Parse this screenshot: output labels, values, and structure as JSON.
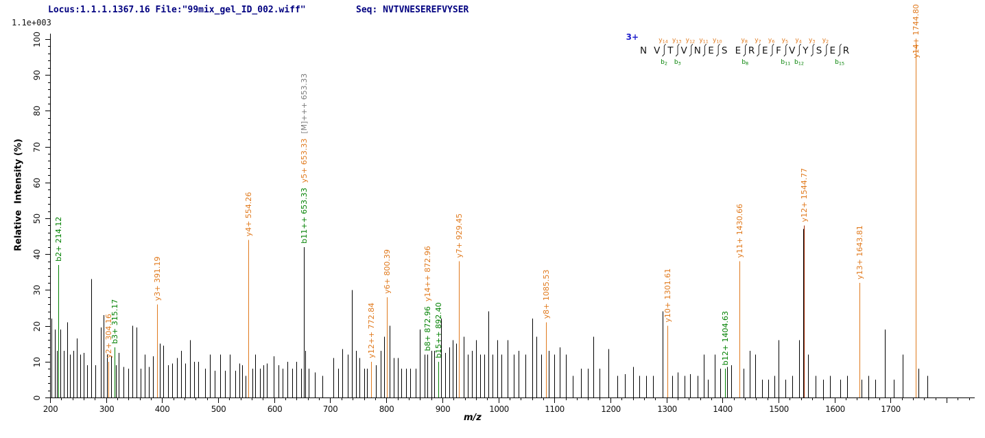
{
  "header": {
    "locus_file": "Locus:1.1.1.1367.16 File:\"99mix_gel_ID_002.wiff\"",
    "seq": "Seq: NVTVNESEREFVYSER"
  },
  "colors": {
    "header_text": "#000080",
    "b_ion": "#008000",
    "y_ion": "#e0791c",
    "precursor": "#7a7a7a",
    "peak_black": "#000000",
    "y_dark": "#a02800",
    "axis": "#000000",
    "charge_label": "#2222cc",
    "tick_text": "#111111"
  },
  "chart_data": {
    "type": "stick-spectrum",
    "title": "",
    "xlabel": "m/z",
    "ylabel": "Relative  Intensity (%)",
    "max_intensity_label": "1.1e+003",
    "xlim": [
      200,
      1850
    ],
    "ylim": [
      0,
      100
    ],
    "x_major_tick_step": 100,
    "x_minor_tick_step": 20,
    "x_tick_labels": [
      200,
      300,
      400,
      500,
      600,
      700,
      800,
      900,
      1000,
      1100,
      1200,
      1300,
      1400,
      1500,
      1600,
      1700
    ],
    "y_major_tick_step": 10,
    "y_minor_tick_step": 2,
    "y_tick_labels": [
      0,
      10,
      20,
      30,
      40,
      50,
      60,
      70,
      80,
      90,
      100
    ],
    "grid": false,
    "annotated_peaks": [
      {
        "mz": 214.12,
        "intensity": 37,
        "line": "b",
        "labels": [
          {
            "text": "b2+ 214.12",
            "type": "b"
          }
        ]
      },
      {
        "mz": 304.16,
        "intensity": 10,
        "line": "y",
        "labels": [
          {
            "text": "y2+ 304.16",
            "type": "y"
          }
        ]
      },
      {
        "mz": 315.17,
        "intensity": 14,
        "line": "b",
        "labels": [
          {
            "text": "b3+ 315.17",
            "type": "b"
          }
        ]
      },
      {
        "mz": 391.19,
        "intensity": 26,
        "line": "y",
        "labels": [
          {
            "text": "y3+ 391.19",
            "type": "y"
          }
        ]
      },
      {
        "mz": 554.26,
        "intensity": 44,
        "line": "y",
        "labels": [
          {
            "text": "y4+ 554.26",
            "type": "y"
          }
        ]
      },
      {
        "mz": 653.33,
        "intensity": 42,
        "line": "black",
        "labels": [
          {
            "text": "b11++ 653.33",
            "type": "b"
          },
          {
            "text": "y5+ 653.33",
            "type": "y"
          },
          {
            "text": "[M]+++ 653.33",
            "type": "precursor"
          }
        ]
      },
      {
        "mz": 772.84,
        "intensity": 10,
        "line": "y",
        "labels": [
          {
            "text": "y12++ 772.84",
            "type": "y"
          }
        ]
      },
      {
        "mz": 800.39,
        "intensity": 28,
        "line": "y",
        "labels": [
          {
            "text": "y6+ 800.39",
            "type": "y"
          }
        ]
      },
      {
        "mz": 872.96,
        "intensity": 12,
        "line": "black",
        "labels": [
          {
            "text": "b8+ 872.96",
            "type": "b"
          },
          {
            "text": "y14++ 872.96",
            "type": "y"
          }
        ]
      },
      {
        "mz": 892.4,
        "intensity": 10,
        "line": "b",
        "labels": [
          {
            "text": "b15++ 892.40",
            "type": "b"
          }
        ]
      },
      {
        "mz": 929.45,
        "intensity": 38,
        "line": "y",
        "labels": [
          {
            "text": "y7+ 929.45",
            "type": "y"
          }
        ]
      },
      {
        "mz": 1085.53,
        "intensity": 21,
        "line": "y",
        "labels": [
          {
            "text": "y8+ 1085.53",
            "type": "y"
          }
        ]
      },
      {
        "mz": 1301.61,
        "intensity": 20,
        "line": "y",
        "labels": [
          {
            "text": "y10+ 1301.61",
            "type": "y"
          }
        ]
      },
      {
        "mz": 1404.63,
        "intensity": 8,
        "line": "b",
        "labels": [
          {
            "text": "b12+ 1404.63",
            "type": "b"
          }
        ]
      },
      {
        "mz": 1430.66,
        "intensity": 38,
        "line": "y",
        "labels": [
          {
            "text": "y11+ 1430.66",
            "type": "y"
          }
        ]
      },
      {
        "mz": 1544.77,
        "intensity": 48,
        "line": "y-dark",
        "labels": [
          {
            "text": "y12+ 1544.77",
            "type": "y"
          }
        ]
      },
      {
        "mz": 1643.81,
        "intensity": 32,
        "line": "y",
        "labels": [
          {
            "text": "y13+ 1643.81",
            "type": "y"
          }
        ]
      },
      {
        "mz": 1744.8,
        "intensity": 100,
        "line": "y",
        "labels": [
          {
            "text": "y14+ 1744.80",
            "type": "y"
          }
        ]
      }
    ],
    "unlabeled_peaks": [
      [
        203,
        22
      ],
      [
        209,
        19
      ],
      [
        212,
        13
      ],
      [
        218,
        19
      ],
      [
        224,
        13
      ],
      [
        230,
        21
      ],
      [
        236,
        12
      ],
      [
        242,
        13
      ],
      [
        248,
        16.5
      ],
      [
        254,
        12
      ],
      [
        260,
        12.5
      ],
      [
        266,
        9
      ],
      [
        273,
        33
      ],
      [
        281,
        9
      ],
      [
        290,
        19.5
      ],
      [
        296,
        23
      ],
      [
        301,
        12
      ],
      [
        309,
        11.5
      ],
      [
        317,
        9
      ],
      [
        323,
        12.5
      ],
      [
        331,
        8.5
      ],
      [
        339,
        8
      ],
      [
        347,
        20
      ],
      [
        354,
        19.5
      ],
      [
        362,
        8
      ],
      [
        369,
        12
      ],
      [
        376,
        8.5
      ],
      [
        384,
        11.5
      ],
      [
        396,
        15
      ],
      [
        402,
        14.5
      ],
      [
        410,
        9
      ],
      [
        418,
        9.5
      ],
      [
        426,
        11
      ],
      [
        434,
        13
      ],
      [
        441,
        9.5
      ],
      [
        450,
        16
      ],
      [
        457,
        10
      ],
      [
        465,
        10
      ],
      [
        477,
        8
      ],
      [
        485,
        12
      ],
      [
        494,
        7.5
      ],
      [
        503,
        12
      ],
      [
        512,
        7.5
      ],
      [
        521,
        12
      ],
      [
        530,
        7.5
      ],
      [
        538,
        9.5
      ],
      [
        543,
        9
      ],
      [
        549,
        6
      ],
      [
        561,
        8
      ],
      [
        566,
        12
      ],
      [
        574,
        8
      ],
      [
        581,
        9
      ],
      [
        587,
        9.5
      ],
      [
        599,
        11.5
      ],
      [
        607,
        9
      ],
      [
        615,
        8
      ],
      [
        624,
        10
      ],
      [
        632,
        8
      ],
      [
        640,
        10
      ],
      [
        648,
        8
      ],
      [
        655,
        13
      ],
      [
        661,
        8
      ],
      [
        673,
        7
      ],
      [
        686,
        6
      ],
      [
        706,
        11
      ],
      [
        714,
        8
      ],
      [
        722,
        13.5
      ],
      [
        731,
        12
      ],
      [
        738,
        30
      ],
      [
        746,
        13
      ],
      [
        752,
        11
      ],
      [
        760,
        8
      ],
      [
        766,
        8
      ],
      [
        782,
        9
      ],
      [
        790,
        13
      ],
      [
        796,
        17
      ],
      [
        806,
        20
      ],
      [
        813,
        11
      ],
      [
        820,
        11
      ],
      [
        827,
        8
      ],
      [
        835,
        8
      ],
      [
        843,
        8
      ],
      [
        852,
        8
      ],
      [
        860,
        19
      ],
      [
        868,
        12
      ],
      [
        880,
        13
      ],
      [
        886,
        13
      ],
      [
        898,
        22
      ],
      [
        905,
        12.5
      ],
      [
        912,
        14
      ],
      [
        918,
        16
      ],
      [
        925,
        15
      ],
      [
        938,
        17
      ],
      [
        946,
        12
      ],
      [
        953,
        13
      ],
      [
        960,
        16
      ],
      [
        968,
        12
      ],
      [
        975,
        12
      ],
      [
        982,
        24
      ],
      [
        990,
        12
      ],
      [
        998,
        16
      ],
      [
        1006,
        12
      ],
      [
        1016,
        16
      ],
      [
        1028,
        12
      ],
      [
        1036,
        13
      ],
      [
        1048,
        12
      ],
      [
        1060,
        22
      ],
      [
        1068,
        17
      ],
      [
        1076,
        12
      ],
      [
        1090,
        13
      ],
      [
        1100,
        12
      ],
      [
        1110,
        14
      ],
      [
        1120,
        12
      ],
      [
        1133,
        6
      ],
      [
        1148,
        8
      ],
      [
        1160,
        8
      ],
      [
        1169,
        17
      ],
      [
        1180,
        8
      ],
      [
        1196,
        13.5
      ],
      [
        1212,
        6
      ],
      [
        1226,
        6.5
      ],
      [
        1240,
        8.5
      ],
      [
        1252,
        6
      ],
      [
        1264,
        6
      ],
      [
        1276,
        6
      ],
      [
        1293,
        24
      ],
      [
        1310,
        6
      ],
      [
        1320,
        7
      ],
      [
        1332,
        6
      ],
      [
        1342,
        6.5
      ],
      [
        1355,
        6
      ],
      [
        1366,
        12
      ],
      [
        1374,
        5
      ],
      [
        1386,
        12
      ],
      [
        1396,
        8
      ],
      [
        1408,
        8.5
      ],
      [
        1416,
        9
      ],
      [
        1438,
        8
      ],
      [
        1448,
        13
      ],
      [
        1458,
        12
      ],
      [
        1470,
        5
      ],
      [
        1482,
        5
      ],
      [
        1492,
        6
      ],
      [
        1500,
        16
      ],
      [
        1512,
        5
      ],
      [
        1524,
        6
      ],
      [
        1537,
        16
      ],
      [
        1543.5,
        47
      ],
      [
        1553,
        12
      ],
      [
        1566,
        6
      ],
      [
        1580,
        5
      ],
      [
        1592,
        6
      ],
      [
        1610,
        5
      ],
      [
        1622,
        6
      ],
      [
        1648,
        5
      ],
      [
        1660,
        6
      ],
      [
        1672,
        5
      ],
      [
        1690,
        19
      ],
      [
        1705,
        5
      ],
      [
        1722,
        12
      ],
      [
        1750,
        8
      ],
      [
        1765,
        6
      ]
    ],
    "fragment_map": {
      "charge": "3+",
      "residues": [
        "N",
        "V",
        "T",
        "V",
        "N",
        "E",
        "S",
        "E",
        "R",
        "E",
        "F",
        "V",
        "Y",
        "S",
        "E",
        "R"
      ],
      "sites": [
        {
          "after": 2,
          "y": "y14",
          "b": "b2"
        },
        {
          "after": 3,
          "y": "y13",
          "b": "b3"
        },
        {
          "after": 4,
          "y": "y12",
          "b": null
        },
        {
          "after": 5,
          "y": "y11",
          "b": null
        },
        {
          "after": 6,
          "y": "y10",
          "b": null
        },
        {
          "after": 8,
          "y": "y8",
          "b": "b8"
        },
        {
          "after": 9,
          "y": "y7",
          "b": null
        },
        {
          "after": 10,
          "y": "y6",
          "b": null
        },
        {
          "after": 11,
          "y": "y5",
          "b": "b11"
        },
        {
          "after": 12,
          "y": "y4",
          "b": "b12"
        },
        {
          "after": 13,
          "y": "y3",
          "b": null
        },
        {
          "after": 14,
          "y": "y2",
          "b": null
        },
        {
          "after": 15,
          "y": null,
          "b": "b15"
        }
      ]
    }
  }
}
